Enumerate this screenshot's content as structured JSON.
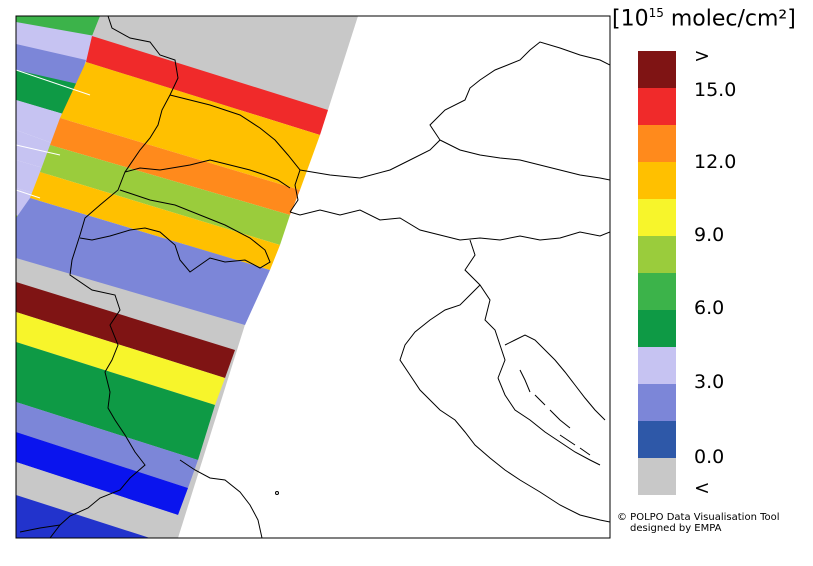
{
  "legend": {
    "unit_prefix": "[10",
    "unit_exponent": "15",
    "unit_suffix": " molec/cm²]",
    "bins": [
      {
        "label": "<",
        "color": "#c8c8c8"
      },
      {
        "label": "",
        "color": "#2e58a8"
      },
      {
        "label": "",
        "color": "#7c86d8"
      },
      {
        "label": "",
        "color": "#c6c3f2"
      },
      {
        "label": "",
        "color": "#0e9a45"
      },
      {
        "label": "",
        "color": "#3cb34a"
      },
      {
        "label": "",
        "color": "#9acc3c"
      },
      {
        "label": "",
        "color": "#f7f52b"
      },
      {
        "label": "",
        "color": "#ffc000"
      },
      {
        "label": "",
        "color": "#ff8a1c"
      },
      {
        "label": "",
        "color": "#f02a2a"
      },
      {
        "label": ">",
        "color": "#7f1414"
      }
    ],
    "ticks": [
      "15.0",
      "12.0",
      "9.0",
      "6.0",
      "3.0",
      "0.0"
    ]
  },
  "credits": {
    "line1": "© POLPO Data Visualisation Tool",
    "line2": "designed by EMPA"
  },
  "swath_colors": {
    "no_data": "#c8c8c8",
    "c0": "#2e58a8",
    "c1": "#7c86d8",
    "c2": "#c6c3f2",
    "c3": "#0e9a45",
    "c4": "#3cb34a",
    "c5": "#9acc3c",
    "c6": "#f7f52b",
    "c7": "#ffc000",
    "c8": "#ff8a1c",
    "c9": "#f02a2a",
    "c10": "#7f1414",
    "c_blue": "#0a14ee",
    "c_left_blue": "#2233cc"
  }
}
